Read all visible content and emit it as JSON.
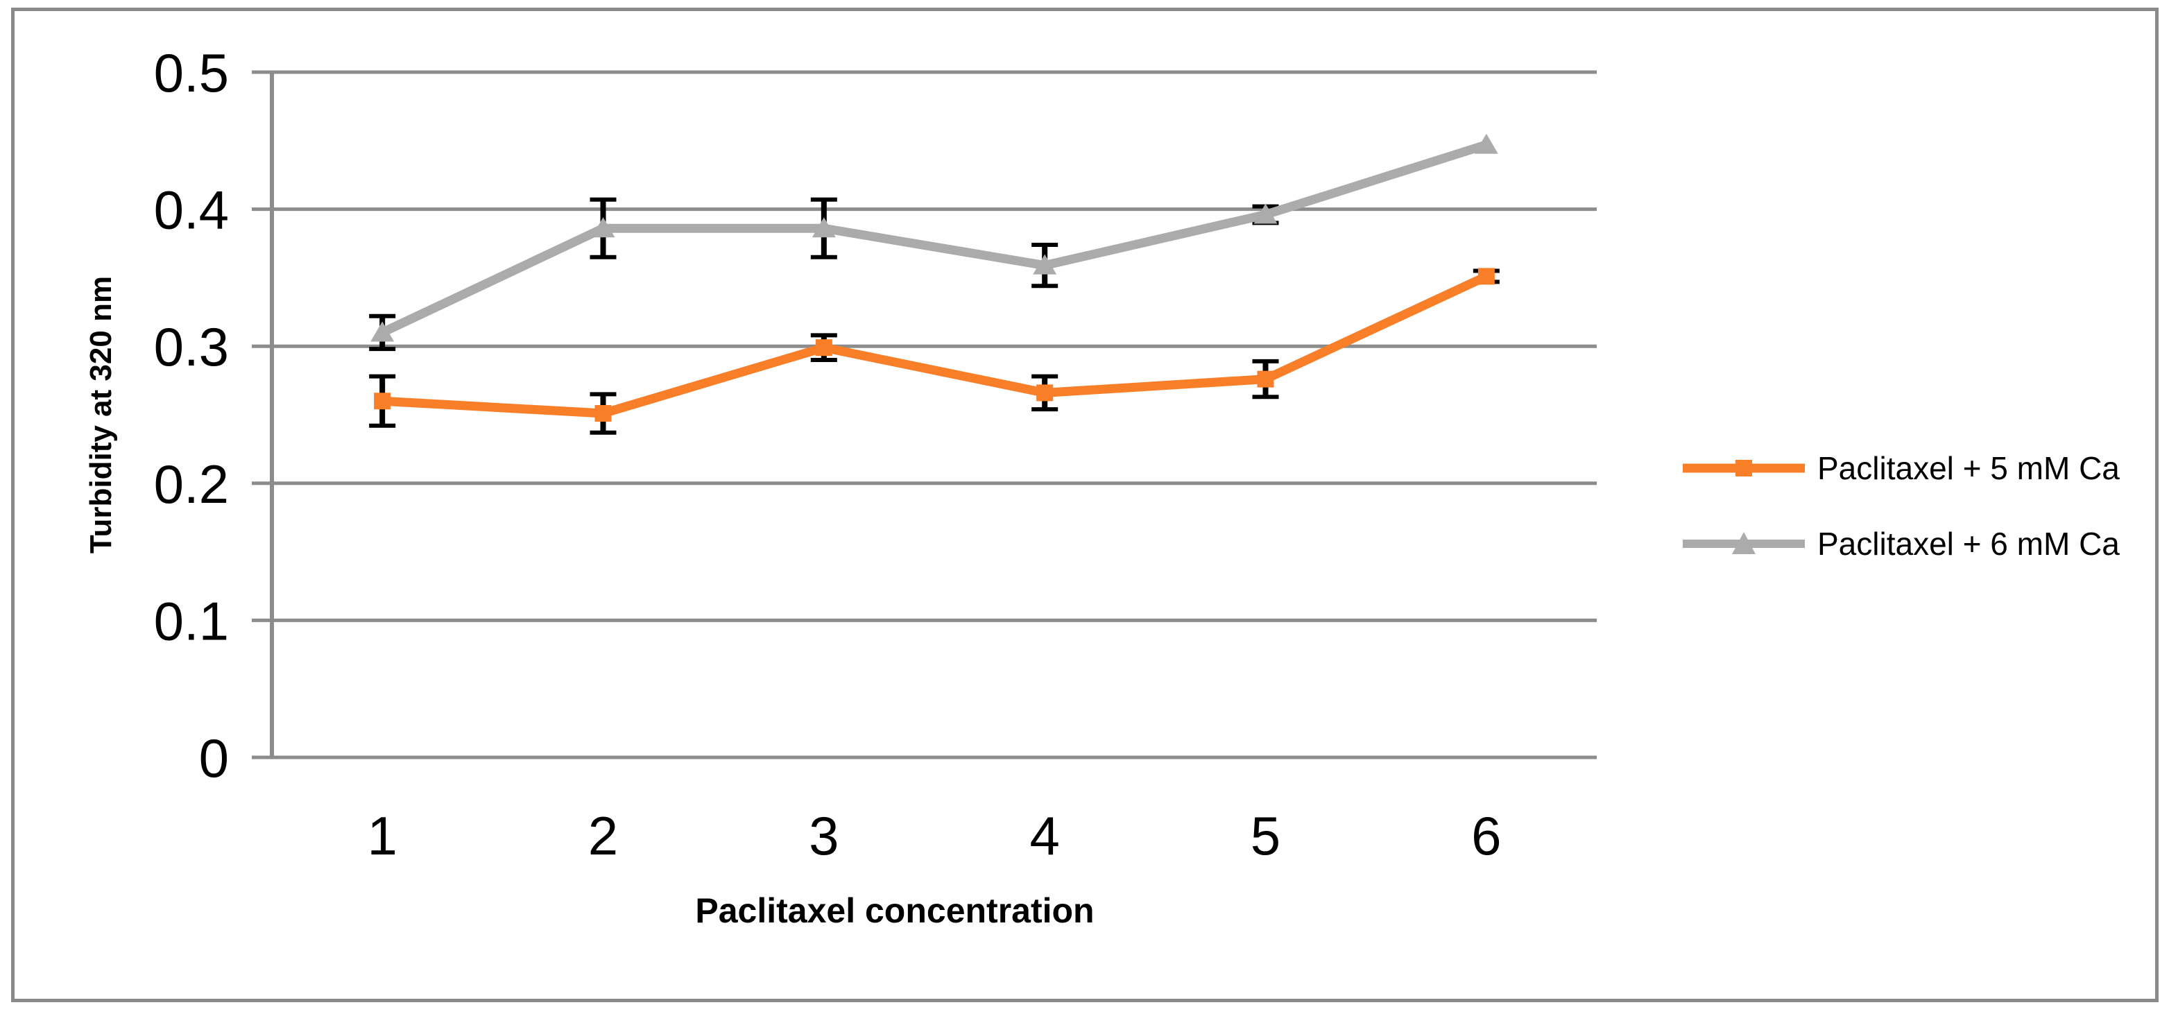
{
  "figure": {
    "background": "#FFFFFF",
    "border_color": "#8A8A8A"
  },
  "chart_data": {
    "type": "line",
    "title": "",
    "xlabel": "Paclitaxel concentration",
    "ylabel": "Turbidity at 320 nm",
    "categories": [
      "1",
      "2",
      "3",
      "4",
      "5",
      "6"
    ],
    "ylim": [
      0,
      0.5
    ],
    "yticks": [
      {
        "value": 0,
        "label": "0"
      },
      {
        "value": 0.1,
        "label": "0.1"
      },
      {
        "value": 0.2,
        "label": "0.2"
      },
      {
        "value": 0.3,
        "label": "0.3"
      },
      {
        "value": 0.4,
        "label": "0.4"
      },
      {
        "value": 0.5,
        "label": "0.5"
      }
    ],
    "grid": true,
    "legend_position": "right",
    "error_bars": true,
    "colors": {
      "gridline": "#8C8C8C",
      "axis": "#8C8C8C",
      "error_bar": "#000000",
      "text": "#000000"
    },
    "series": [
      {
        "name": "Paclitaxel + 5 mM Ca",
        "color": "#F87E28",
        "marker": "square",
        "values": [
          0.26,
          0.251,
          0.299,
          0.266,
          0.276,
          0.351
        ],
        "errors": [
          0.018,
          0.014,
          0.009,
          0.012,
          0.013,
          0.004
        ]
      },
      {
        "name": "Paclitaxel + 6 mM Ca",
        "color": "#ABABAB",
        "marker": "triangle",
        "values": [
          0.31,
          0.386,
          0.386,
          0.359,
          0.396,
          0.447
        ],
        "errors": [
          0.012,
          0.021,
          0.021,
          0.015,
          0.006,
          0
        ]
      }
    ]
  }
}
